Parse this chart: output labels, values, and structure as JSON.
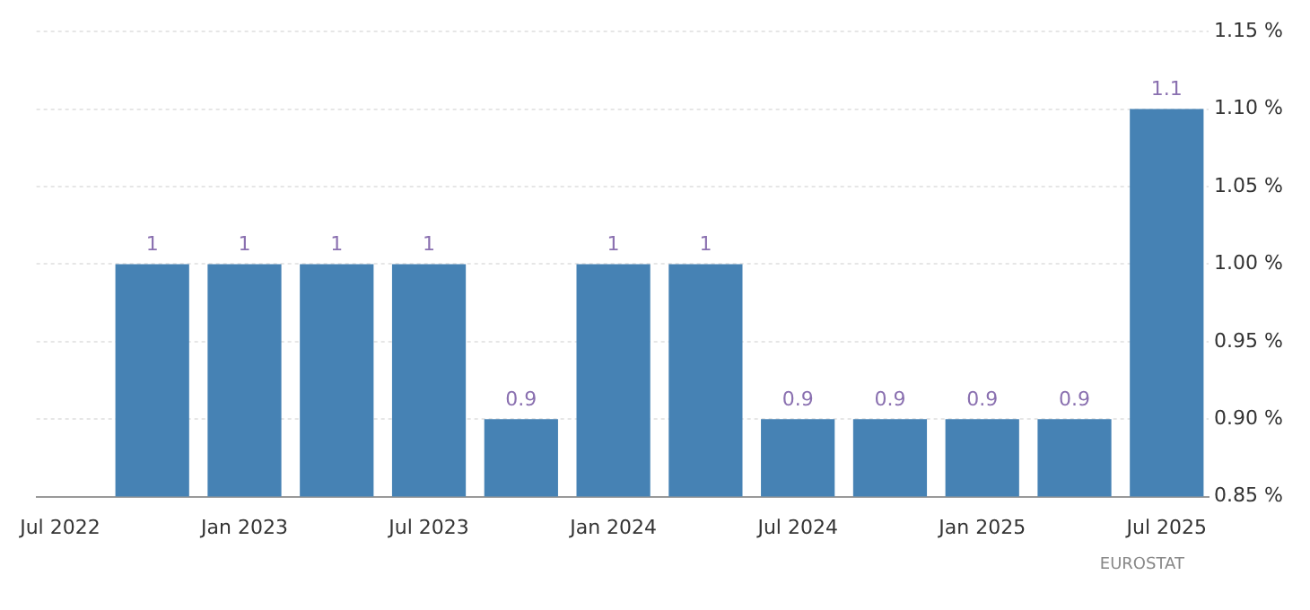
{
  "chart_data": {
    "type": "bar",
    "x": [
      "2022-10",
      "2023-01",
      "2023-04",
      "2023-07",
      "2023-10",
      "2024-01",
      "2024-04",
      "2024-07",
      "2024-10",
      "2025-01",
      "2025-04",
      "2025-07"
    ],
    "values": [
      1,
      1,
      1,
      1,
      0.9,
      1,
      1,
      0.9,
      0.9,
      0.9,
      0.9,
      1.1
    ],
    "color": "#4682b4",
    "data_labels": true,
    "xlim": [
      "2022-06-08",
      "2025-08-12"
    ],
    "xticks": [
      {
        "value": "2022-07",
        "label": "Jul 2022"
      },
      {
        "value": "2023-01",
        "label": "Jan 2023"
      },
      {
        "value": "2023-07",
        "label": "Jul 2023"
      },
      {
        "value": "2024-01",
        "label": "Jan 2024"
      },
      {
        "value": "2024-07",
        "label": "Jul 2024"
      },
      {
        "value": "2025-01",
        "label": "Jan 2025"
      },
      {
        "value": "2025-07",
        "label": "Jul 2025"
      }
    ],
    "ylim": [
      0.85,
      1.15
    ],
    "yticks": [
      {
        "value": 0.85,
        "label": "0.85 %"
      },
      {
        "value": 0.9,
        "label": "0.90 %"
      },
      {
        "value": 0.95,
        "label": "0.95 %"
      },
      {
        "value": 1,
        "label": "1.00 %"
      },
      {
        "value": 1.05,
        "label": "1.05 %"
      },
      {
        "value": 1.1,
        "label": "1.10 %"
      },
      {
        "value": 1.15,
        "label": "1.15 %"
      }
    ],
    "grid": "y",
    "legend": false,
    "annotations": [
      "EUROSTAT"
    ]
  }
}
